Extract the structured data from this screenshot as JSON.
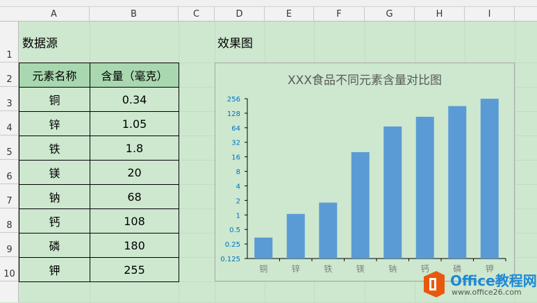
{
  "columns": [
    "A",
    "B",
    "C",
    "D",
    "E",
    "F",
    "G",
    "H",
    "I"
  ],
  "rows": [
    "1",
    "2",
    "3",
    "4",
    "5",
    "6",
    "7",
    "8",
    "9",
    "10"
  ],
  "cells": {
    "a1": "数据源",
    "d1": "效果图"
  },
  "table": {
    "headers": [
      "元素名称",
      "含量（毫克）"
    ],
    "rows": [
      [
        "铜",
        "0.34"
      ],
      [
        "锌",
        "1.05"
      ],
      [
        "铁",
        "1.8"
      ],
      [
        "镁",
        "20"
      ],
      [
        "钠",
        "68"
      ],
      [
        "钙",
        "108"
      ],
      [
        "磷",
        "180"
      ],
      [
        "钾",
        "255"
      ]
    ]
  },
  "chart_data": {
    "type": "bar",
    "title": "XXX食品不同元素含量对比图",
    "categories": [
      "铜",
      "锌",
      "铁",
      "镁",
      "钠",
      "钙",
      "磷",
      "钾"
    ],
    "values": [
      0.34,
      1.05,
      1.8,
      20,
      68,
      108,
      180,
      255
    ],
    "y_scale": "log2",
    "ylim": [
      0.125,
      256
    ],
    "yticks": [
      "0.125",
      "0.25",
      "0.5",
      "1",
      "2",
      "4",
      "8",
      "16",
      "32",
      "64",
      "128",
      "256"
    ],
    "grid": false,
    "bar_color": "#5b9bd5",
    "tick_color": "#0070c0"
  },
  "watermark": {
    "brand": "Office教程网",
    "url": "www.office26.com"
  }
}
